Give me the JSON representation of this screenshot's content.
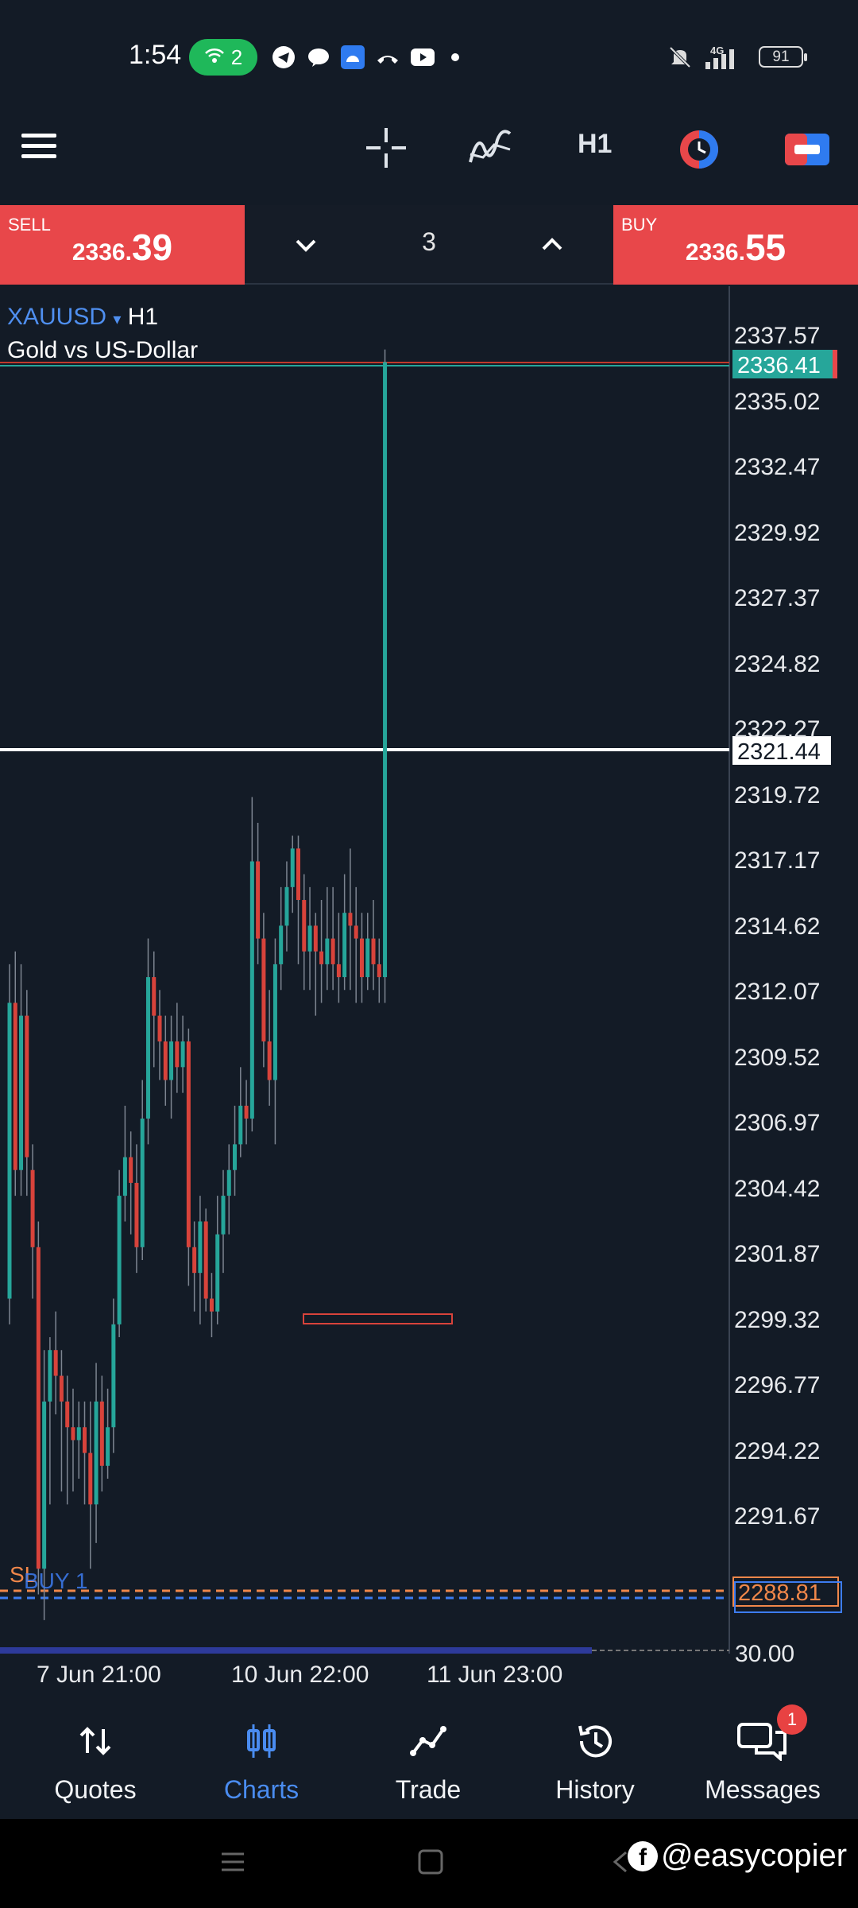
{
  "status_bar": {
    "time": "1:54",
    "hotspot_count": "2",
    "network": "4G",
    "battery": "91"
  },
  "toolbar": {
    "timeframe": "H1"
  },
  "trade_bar": {
    "sell_label": "SELL",
    "sell_price_small": "2336.",
    "sell_price_big": "39",
    "buy_label": "BUY",
    "buy_price_small": "2336.",
    "buy_price_big": "55",
    "lot_value": "3"
  },
  "chart": {
    "symbol": "XAUUSD",
    "symbol_arrow": "▾",
    "timeframe": "H1",
    "description": "Gold vs US-Dollar",
    "price_levels": [
      "2337.57",
      "2335.02",
      "2332.47",
      "2329.92",
      "2327.37",
      "2324.82",
      "2322.27",
      "2319.72",
      "2317.17",
      "2314.62",
      "2312.07",
      "2309.52",
      "2306.97",
      "2304.42",
      "2301.87",
      "2299.32",
      "2296.77",
      "2294.22",
      "2291.67"
    ],
    "current_bid_tag": "2336.41",
    "line_tag": "2321.44",
    "sl_tag": "2288.81",
    "sl_label": "SL",
    "buy_position_label": "BUY 1",
    "bottom_tag": "30.00",
    "date_labels": [
      "7 Jun 21:00",
      "10 Jun 22:00",
      "11 Jun 23:00"
    ],
    "colors": {
      "bull": "#26a69a",
      "bear": "#d8433b",
      "background": "#131b26",
      "sl": "#f0874a",
      "position": "#3d7cf0"
    }
  },
  "bottom_nav": {
    "items": [
      {
        "label": "Quotes",
        "icon": "quotes-icon"
      },
      {
        "label": "Charts",
        "icon": "charts-icon"
      },
      {
        "label": "Trade",
        "icon": "trade-icon"
      },
      {
        "label": "History",
        "icon": "history-icon"
      },
      {
        "label": "Messages",
        "icon": "messages-icon"
      }
    ],
    "messages_badge": "1"
  },
  "watermark": {
    "text": "@easycopier",
    "fb_letter": "f"
  }
}
